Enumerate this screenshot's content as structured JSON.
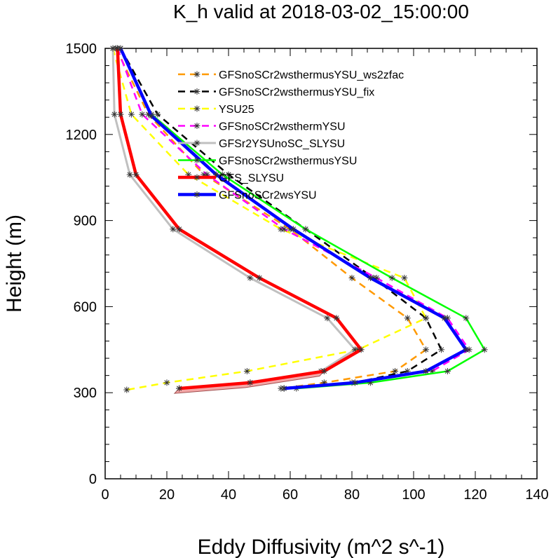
{
  "chart_data": {
    "type": "line",
    "title": "K_h valid at 2018-03-02_15:00:00",
    "xlabel": "Eddy Diffusivity (m^2 s^-1)",
    "ylabel": "Height (m)",
    "xlim": [
      0,
      140
    ],
    "ylim": [
      0,
      1500
    ],
    "x_ticks": [
      0,
      20,
      40,
      60,
      80,
      100,
      120,
      140
    ],
    "y_ticks": [
      0,
      300,
      600,
      900,
      1200,
      1500
    ],
    "grid": false,
    "legend_position": "top-right",
    "series": [
      {
        "name": "GFSnoSCr2wsthermusYSU_ws2zfac",
        "color": "#ff9900",
        "width": 2.5,
        "dash": "10,7",
        "shade": false,
        "points": [
          [
            3.5,
            1500
          ],
          [
            14,
            1270
          ],
          [
            32,
            1060
          ],
          [
            60,
            870
          ],
          [
            80,
            700
          ],
          [
            98,
            560
          ],
          [
            104,
            450
          ],
          [
            94,
            375
          ],
          [
            71,
            335
          ],
          [
            57,
            315
          ]
        ]
      },
      {
        "name": "GFSnoSCr2wsthermusYSU_fix",
        "color": "#000000",
        "width": 2.5,
        "dash": "10,7",
        "shade": false,
        "points": [
          [
            5,
            1500
          ],
          [
            17,
            1270
          ],
          [
            40,
            1060
          ],
          [
            65,
            870
          ],
          [
            87,
            700
          ],
          [
            104,
            560
          ],
          [
            109,
            450
          ],
          [
            98,
            375
          ],
          [
            81,
            335
          ],
          [
            58,
            315
          ]
        ]
      },
      {
        "name": "YSU25",
        "color": "#ffff00",
        "width": 2.5,
        "dash": "10,7",
        "shade": false,
        "points": [
          [
            2.5,
            1500
          ],
          [
            8.5,
            1270
          ],
          [
            27,
            1060
          ],
          [
            57,
            870
          ],
          [
            97,
            700
          ],
          [
            104,
            560
          ],
          [
            82,
            450
          ],
          [
            46,
            375
          ],
          [
            20,
            335
          ],
          [
            7,
            310
          ]
        ]
      },
      {
        "name": "GFSnoSCr2wsthermYSU",
        "color": "#ff00ff",
        "width": 2.5,
        "dash": "10,7",
        "shade": false,
        "points": [
          [
            4,
            1500
          ],
          [
            12,
            1270
          ],
          [
            33,
            1060
          ],
          [
            58,
            870
          ],
          [
            88,
            700
          ],
          [
            111,
            560
          ],
          [
            118,
            450
          ],
          [
            106,
            375
          ],
          [
            80,
            335
          ],
          [
            58,
            315
          ]
        ]
      },
      {
        "name": "GFSr2YSUnoSC_SLYSU",
        "color": "#c0c0c0",
        "width": 3,
        "dash": "",
        "shade": false,
        "points": [
          [
            2.5,
            1500
          ],
          [
            3,
            1270
          ],
          [
            8,
            1060
          ],
          [
            22,
            870
          ],
          [
            47,
            700
          ],
          [
            72,
            560
          ],
          [
            81,
            450
          ],
          [
            70,
            375
          ],
          [
            47,
            335
          ],
          [
            24,
            315
          ]
        ]
      },
      {
        "name": "GFSnoSCr2wsthermusYSU",
        "color": "#00ff00",
        "width": 2.5,
        "dash": "",
        "shade": false,
        "points": [
          [
            5,
            1500
          ],
          [
            15,
            1270
          ],
          [
            38,
            1060
          ],
          [
            65,
            870
          ],
          [
            93,
            700
          ],
          [
            117,
            560
          ],
          [
            123,
            450
          ],
          [
            111,
            375
          ],
          [
            86,
            335
          ],
          [
            62,
            315
          ]
        ]
      },
      {
        "name": "GFS_SLYSU",
        "color": "#ff0000",
        "width": 4.5,
        "dash": "",
        "shade": true,
        "points": [
          [
            4,
            1500
          ],
          [
            5,
            1270
          ],
          [
            10,
            1060
          ],
          [
            24,
            870
          ],
          [
            50,
            700
          ],
          [
            75,
            560
          ],
          [
            83,
            450
          ],
          [
            71,
            375
          ],
          [
            47,
            335
          ],
          [
            24,
            315
          ]
        ]
      },
      {
        "name": "GFSnoSCr2wsYSU",
        "color": "#0000ff",
        "width": 4.5,
        "dash": "",
        "shade": false,
        "points": [
          [
            5,
            1500
          ],
          [
            15,
            1265
          ],
          [
            36,
            1060
          ],
          [
            61,
            870
          ],
          [
            86,
            700
          ],
          [
            110,
            560
          ],
          [
            117,
            450
          ],
          [
            104,
            375
          ],
          [
            81,
            335
          ],
          [
            58,
            315
          ]
        ]
      }
    ]
  }
}
